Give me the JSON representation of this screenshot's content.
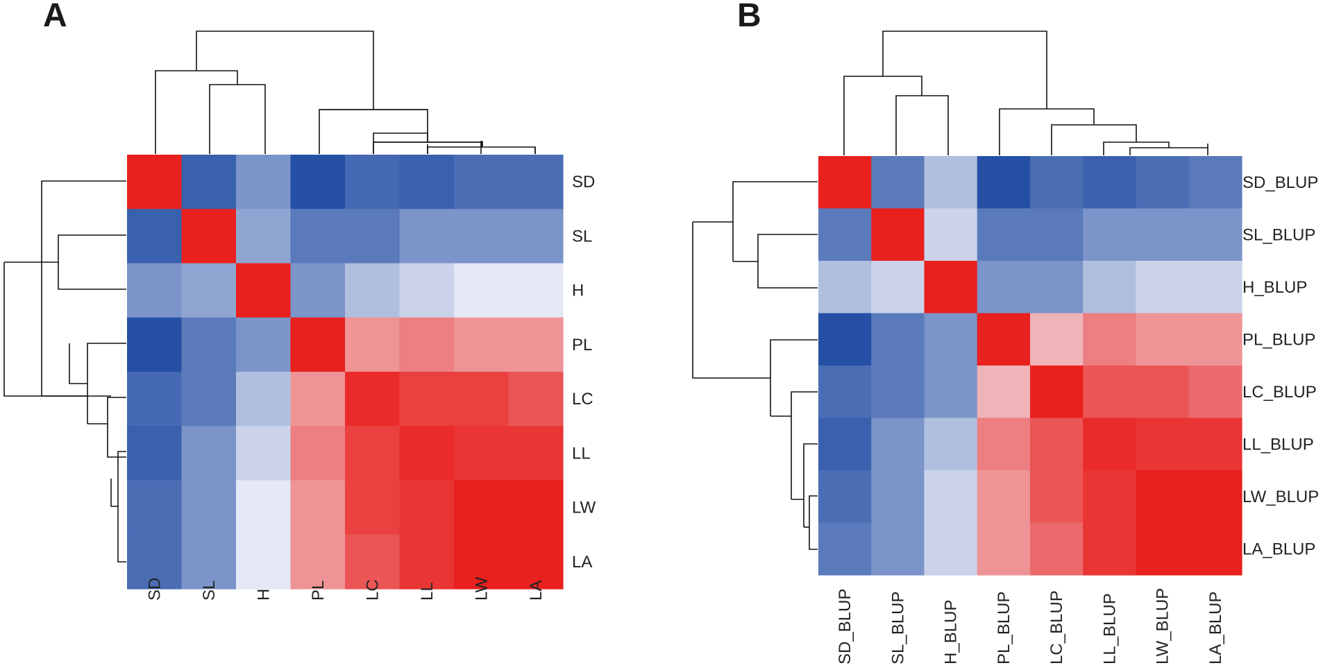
{
  "chart_data": [
    {
      "type": "heatmap",
      "panel_label": "A",
      "title": "",
      "rows": [
        "SD",
        "SL",
        "H",
        "PL",
        "LC",
        "LL",
        "LW",
        "LA"
      ],
      "columns": [
        "SD",
        "SL",
        "H",
        "PL",
        "LC",
        "LL",
        "LW",
        "LA"
      ],
      "values": [
        [
          1.0,
          -0.85,
          -0.55,
          -0.95,
          -0.8,
          -0.85,
          -0.78,
          -0.78
        ],
        [
          -0.85,
          1.0,
          -0.45,
          -0.7,
          -0.7,
          -0.55,
          -0.55,
          -0.55
        ],
        [
          -0.55,
          -0.45,
          1.0,
          -0.55,
          -0.3,
          -0.18,
          -0.06,
          -0.06
        ],
        [
          -0.95,
          -0.7,
          -0.55,
          1.0,
          0.45,
          0.55,
          0.45,
          0.45
        ],
        [
          -0.8,
          -0.7,
          -0.3,
          0.45,
          0.95,
          0.85,
          0.85,
          0.75
        ],
        [
          -0.85,
          -0.55,
          -0.18,
          0.55,
          0.85,
          0.95,
          0.9,
          0.9
        ],
        [
          -0.78,
          -0.55,
          -0.06,
          0.45,
          0.85,
          0.9,
          1.0,
          1.0
        ],
        [
          -0.78,
          -0.55,
          -0.06,
          0.45,
          0.75,
          0.9,
          1.0,
          1.0
        ]
      ],
      "color_low": "#1a47a0",
      "color_mid": "#f2f2fa",
      "color_high": "#e8201e",
      "value_range": [
        -1,
        1
      ]
    },
    {
      "type": "heatmap",
      "panel_label": "B",
      "title": "",
      "rows": [
        "SD_BLUP",
        "SL_BLUP",
        "H_BLUP",
        "PL_BLUP",
        "LC_BLUP",
        "LL_BLUP",
        "LW_BLUP",
        "LA_BLUP"
      ],
      "columns": [
        "SD_BLUP",
        "SL_BLUP",
        "H_BLUP",
        "PL_BLUP",
        "LC_BLUP",
        "LL_BLUP",
        "LW_BLUP",
        "LA_BLUP"
      ],
      "values": [
        [
          1.0,
          -0.7,
          -0.3,
          -0.95,
          -0.78,
          -0.85,
          -0.78,
          -0.7
        ],
        [
          -0.7,
          1.0,
          -0.18,
          -0.7,
          -0.7,
          -0.55,
          -0.55,
          -0.55
        ],
        [
          -0.3,
          -0.18,
          1.0,
          -0.55,
          -0.55,
          -0.3,
          -0.18,
          -0.18
        ],
        [
          -0.95,
          -0.7,
          -0.55,
          1.0,
          0.3,
          0.55,
          0.45,
          0.45
        ],
        [
          -0.78,
          -0.7,
          -0.55,
          0.3,
          1.0,
          0.75,
          0.75,
          0.65
        ],
        [
          -0.85,
          -0.55,
          -0.3,
          0.55,
          0.75,
          0.95,
          0.9,
          0.9
        ],
        [
          -0.78,
          -0.55,
          -0.18,
          0.45,
          0.75,
          0.9,
          1.0,
          1.0
        ],
        [
          -0.7,
          -0.55,
          -0.18,
          0.45,
          0.65,
          0.9,
          1.0,
          1.0
        ]
      ],
      "color_low": "#1a47a0",
      "color_mid": "#f2f2fa",
      "color_high": "#e8201e",
      "value_range": [
        -1,
        1
      ]
    }
  ]
}
